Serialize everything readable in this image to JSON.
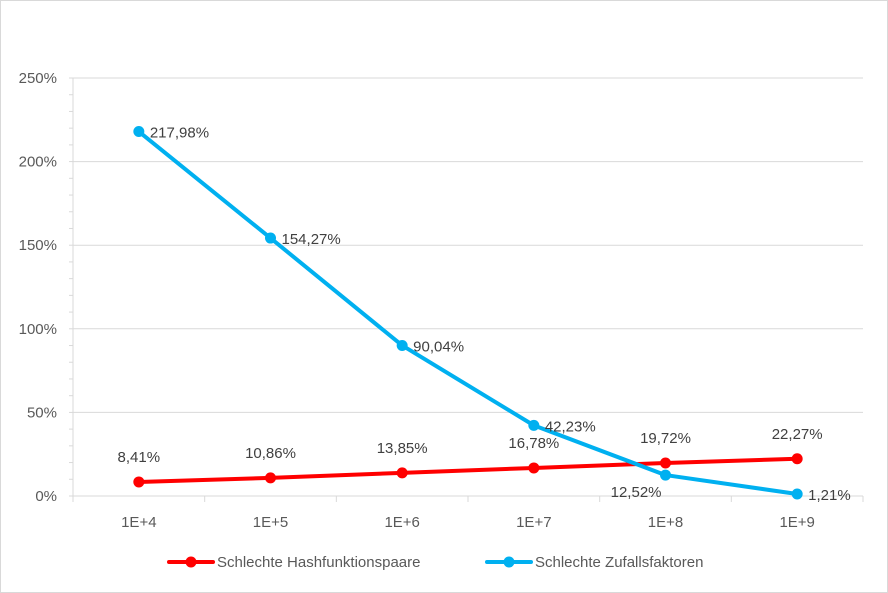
{
  "chart_data": {
    "type": "line",
    "categories": [
      "1E+4",
      "1E+5",
      "1E+6",
      "1E+7",
      "1E+8",
      "1E+9"
    ],
    "ylim": [
      0,
      250
    ],
    "yticks": [
      "0%",
      "50%",
      "100%",
      "150%",
      "200%",
      "250%"
    ],
    "grid": true,
    "legend_position": "bottom",
    "series": [
      {
        "name": "Schlechte Hashfunktionspaare",
        "color": "#ff0000",
        "values": [
          8.41,
          10.86,
          13.85,
          16.78,
          19.72,
          22.27
        ],
        "labels": [
          "8,41%",
          "10,86%",
          "13,85%",
          "16,78%",
          "19,72%",
          "22,27%"
        ]
      },
      {
        "name": "Schlechte Zufallsfaktoren",
        "color": "#00b0f0",
        "values": [
          217.98,
          154.27,
          90.04,
          42.23,
          12.52,
          1.21
        ],
        "labels": [
          "217,98%",
          "154,27%",
          "90,04%",
          "42,23%",
          "12,52%",
          "1,21%"
        ]
      }
    ]
  }
}
